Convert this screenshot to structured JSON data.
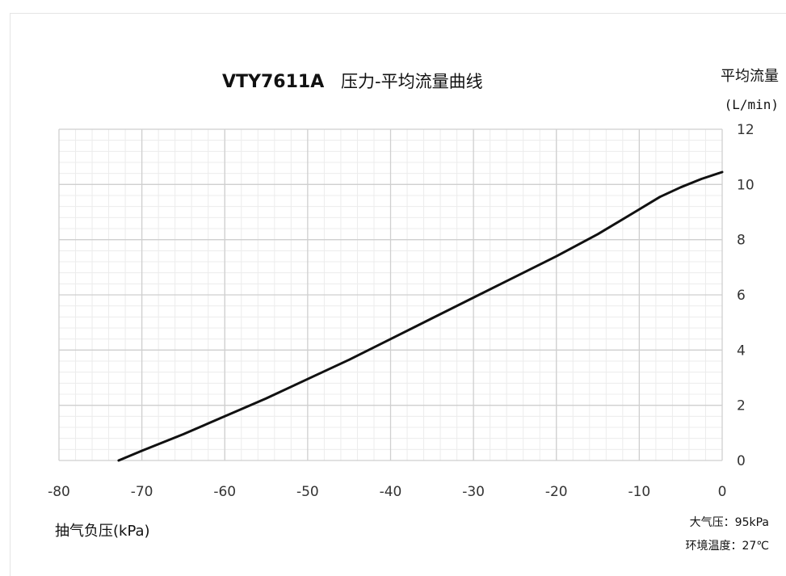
{
  "chart_data": {
    "type": "line",
    "title": "VTY7611A",
    "subtitle": "压力-平均流量曲线",
    "xlabel": "抽气负压(kPa)",
    "ylabel": "平均流量",
    "ylabel_unit": "(L/min)",
    "xlim": [
      -80,
      0
    ],
    "ylim": [
      0,
      12
    ],
    "x_ticks": [
      "-80",
      "-70",
      "-60",
      "-50",
      "-40",
      "-30",
      "-20",
      "-10",
      "0"
    ],
    "y_ticks": [
      "0",
      "2",
      "4",
      "6",
      "8",
      "10",
      "12"
    ],
    "grid": true,
    "series": [
      {
        "x": [
          -72.8,
          -70,
          -65,
          -60,
          -55,
          -50,
          -45,
          -40,
          -35,
          -30,
          -25,
          -20,
          -15,
          -10,
          -7.5,
          -5,
          -2.5,
          0
        ],
        "y": [
          0.0,
          0.35,
          0.95,
          1.6,
          2.25,
          2.95,
          3.65,
          4.4,
          5.15,
          5.9,
          6.65,
          7.4,
          8.2,
          9.1,
          9.55,
          9.9,
          10.2,
          10.45
        ]
      }
    ],
    "annotations": [
      "大气压：95kPa",
      "环境温度：27℃"
    ]
  }
}
